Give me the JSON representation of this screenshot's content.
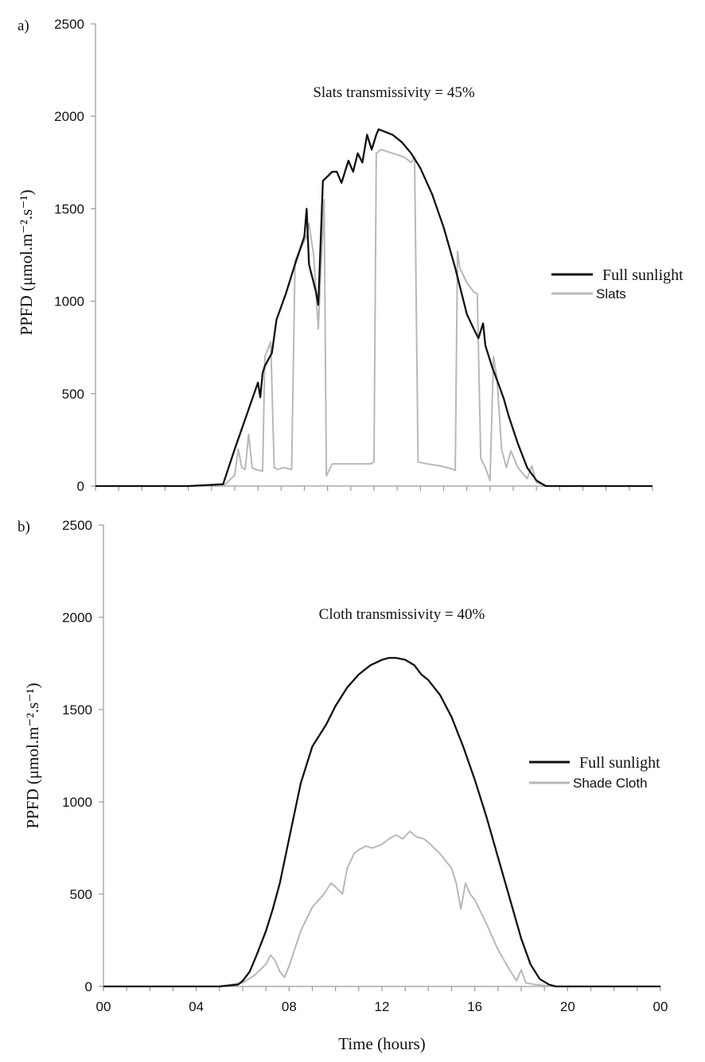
{
  "chart_data": [
    {
      "type": "line",
      "panel_label": "a)",
      "annotation": "Slats transmissivity = 45%",
      "ylabel": "PPFD (μmol.m⁻².s⁻¹)",
      "xlabel": "",
      "ylim": [
        0,
        2500
      ],
      "yticks": [
        "0",
        "500",
        "1000",
        "1500",
        "2000",
        "2500"
      ],
      "xlim": [
        0,
        24
      ],
      "xtick_count": 25,
      "legend": {
        "position": "right",
        "full_label": "Full sunlight",
        "other_label": "Slats"
      },
      "colors": {
        "full": "#111111",
        "other": "#b8b8b8"
      },
      "series": [
        {
          "name": "Full sunlight",
          "x": [
            0,
            4,
            5.5,
            6,
            6.5,
            7,
            7.1,
            7.2,
            7.3,
            7.6,
            7.8,
            8.2,
            8.6,
            9,
            9.1,
            9.2,
            9.5,
            9.6,
            9.8,
            10.2,
            10.4,
            10.6,
            10.9,
            11.1,
            11.3,
            11.5,
            11.7,
            11.9,
            12.1,
            12.2,
            12.4,
            12.8,
            13.2,
            13.6,
            14,
            14.5,
            15,
            15.5,
            16,
            16.3,
            16.5,
            16.7,
            16.8,
            17.1,
            17.4,
            17.6,
            17.8,
            18.2,
            18.6,
            19,
            19.4,
            19.6,
            24
          ],
          "y": [
            0,
            0,
            10,
            200,
            380,
            560,
            480,
            610,
            650,
            720,
            900,
            1040,
            1200,
            1350,
            1500,
            1200,
            1050,
            980,
            1650,
            1700,
            1700,
            1640,
            1760,
            1700,
            1800,
            1750,
            1900,
            1820,
            1900,
            1930,
            1920,
            1900,
            1860,
            1800,
            1720,
            1580,
            1400,
            1180,
            930,
            850,
            800,
            880,
            760,
            640,
            540,
            470,
            380,
            230,
            100,
            30,
            0,
            0,
            0
          ]
        },
        {
          "name": "Slats",
          "x": [
            0,
            4,
            5.6,
            6,
            6.15,
            6.3,
            6.45,
            6.6,
            6.75,
            6.9,
            7.2,
            7.3,
            7.55,
            7.7,
            7.85,
            8.1,
            8.45,
            8.6,
            8.9,
            9.1,
            9.2,
            9.4,
            9.6,
            9.85,
            9.95,
            10.2,
            10.5,
            11,
            11.5,
            11.85,
            12,
            12.1,
            12.3,
            12.8,
            13.3,
            13.6,
            13.75,
            13.9,
            14.3,
            14.8,
            15.3,
            15.5,
            15.6,
            15.7,
            16,
            16.3,
            16.45,
            16.6,
            16.8,
            17,
            17.15,
            17.3,
            17.5,
            17.7,
            17.9,
            18.2,
            18.6,
            18.8,
            19,
            19.5,
            24
          ],
          "y": [
            0,
            0,
            10,
            60,
            200,
            100,
            90,
            280,
            100,
            90,
            80,
            700,
            780,
            100,
            90,
            100,
            90,
            1220,
            1300,
            1350,
            1420,
            1250,
            850,
            1550,
            55,
            120,
            120,
            120,
            120,
            120,
            130,
            1800,
            1820,
            1800,
            1780,
            1750,
            1780,
            130,
            120,
            110,
            95,
            85,
            1270,
            1180,
            1100,
            1050,
            1040,
            150,
            100,
            30,
            700,
            580,
            200,
            100,
            190,
            100,
            40,
            110,
            20,
            0,
            0
          ]
        }
      ]
    },
    {
      "type": "line",
      "panel_label": "b)",
      "annotation": "Cloth transmissivity = 40%",
      "ylabel": "PPFD (μmol.m⁻².s⁻¹)",
      "xlabel": "Time (hours)",
      "ylim": [
        0,
        2500
      ],
      "yticks": [
        "0",
        "500",
        "1000",
        "1500",
        "2000",
        "2500"
      ],
      "xlim": [
        0,
        24
      ],
      "xticks": [
        "00",
        "04",
        "08",
        "12",
        "16",
        "20",
        "00"
      ],
      "xtick_count": 25,
      "legend": {
        "position": "right",
        "full_label": "Full sunlight",
        "other_label": "Shade Cloth"
      },
      "colors": {
        "full": "#111111",
        "other": "#b8b8b8"
      },
      "series": [
        {
          "name": "Full sunlight",
          "x": [
            0,
            5,
            5.8,
            6,
            6.3,
            6.6,
            7,
            7.3,
            7.6,
            8,
            8.5,
            9,
            9.3,
            9.6,
            10,
            10.5,
            11,
            11.5,
            12,
            12.3,
            12.6,
            13,
            13.4,
            13.7,
            14,
            14.5,
            15,
            15.5,
            16,
            16.5,
            17,
            17.5,
            18,
            18.4,
            18.8,
            19.2,
            19.5,
            24
          ],
          "y": [
            0,
            0,
            10,
            30,
            80,
            170,
            300,
            420,
            560,
            800,
            1100,
            1300,
            1360,
            1420,
            1520,
            1620,
            1690,
            1740,
            1770,
            1780,
            1780,
            1770,
            1740,
            1690,
            1660,
            1580,
            1460,
            1300,
            1120,
            920,
            700,
            480,
            260,
            120,
            40,
            10,
            0,
            0
          ]
        },
        {
          "name": "Shade Cloth",
          "x": [
            0,
            5,
            6,
            6.5,
            7,
            7.2,
            7.4,
            7.6,
            7.8,
            8,
            8.5,
            9,
            9.5,
            9.8,
            10,
            10.3,
            10.5,
            10.8,
            11,
            11.3,
            11.6,
            12,
            12.3,
            12.6,
            12.9,
            13.2,
            13.5,
            13.8,
            14,
            14.5,
            15,
            15.2,
            15.4,
            15.6,
            15.8,
            16,
            16.5,
            17,
            17.5,
            17.8,
            18,
            18.2,
            18.6,
            19,
            19.4,
            24
          ],
          "y": [
            0,
            0,
            20,
            60,
            120,
            170,
            140,
            80,
            50,
            110,
            300,
            430,
            500,
            560,
            540,
            500,
            640,
            720,
            740,
            760,
            750,
            770,
            800,
            820,
            800,
            840,
            810,
            800,
            780,
            720,
            640,
            560,
            420,
            560,
            500,
            470,
            340,
            200,
            90,
            30,
            90,
            20,
            10,
            5,
            0,
            0
          ]
        }
      ]
    }
  ]
}
